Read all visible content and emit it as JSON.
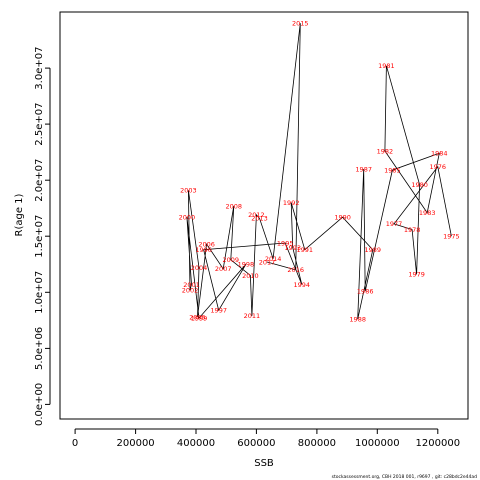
{
  "chart_data": {
    "type": "line",
    "xlabel": "SSB",
    "ylabel": "R(age 1)",
    "xlim": [
      -50000,
      1300000
    ],
    "ylim": [
      -1300000,
      35000000
    ],
    "x_ticks": [
      0,
      200000,
      400000,
      600000,
      800000,
      1000000,
      1200000
    ],
    "x_tick_labels": [
      "0",
      "200000",
      "400000",
      "600000",
      "800000",
      "1000000",
      "1200000"
    ],
    "y_ticks": [
      0,
      5000000,
      10000000,
      15000000,
      20000000,
      25000000,
      30000000
    ],
    "y_tick_labels": [
      "0.0e+00",
      "5.0e+06",
      "1.0e+07",
      "1.5e+07",
      "2.0e+07",
      "2.5e+07",
      "3.0e+07"
    ],
    "grid": false,
    "line_color": "#000000",
    "label_color": "#ff0000",
    "points": [
      {
        "label": "1975",
        "x": 1245000,
        "y": 15000000
      },
      {
        "label": "1976",
        "x": 1200000,
        "y": 21200000
      },
      {
        "label": "1977",
        "x": 1055000,
        "y": 16100000
      },
      {
        "label": "1978",
        "x": 1115000,
        "y": 15600000
      },
      {
        "label": "1979",
        "x": 1130000,
        "y": 11600000
      },
      {
        "label": "1980",
        "x": 1140000,
        "y": 19600000
      },
      {
        "label": "1981",
        "x": 1030000,
        "y": 30200000
      },
      {
        "label": "1982",
        "x": 1025000,
        "y": 22600000
      },
      {
        "label": "1983",
        "x": 1165000,
        "y": 17100000
      },
      {
        "label": "1984",
        "x": 1205000,
        "y": 22400000
      },
      {
        "label": "1985",
        "x": 1050000,
        "y": 20900000
      },
      {
        "label": "1986",
        "x": 960000,
        "y": 10100000
      },
      {
        "label": "1987",
        "x": 955000,
        "y": 21000000
      },
      {
        "label": "1988",
        "x": 935000,
        "y": 7600000
      },
      {
        "label": "1989",
        "x": 985000,
        "y": 13800000
      },
      {
        "label": "1990",
        "x": 885000,
        "y": 16700000
      },
      {
        "label": "1991",
        "x": 760000,
        "y": 13800000
      },
      {
        "label": "1992",
        "x": 715000,
        "y": 18000000
      },
      {
        "label": "1993",
        "x": 720000,
        "y": 14000000
      },
      {
        "label": "1994",
        "x": 750000,
        "y": 10700000
      },
      {
        "label": "1995",
        "x": 695000,
        "y": 14400000
      },
      {
        "label": "1996",
        "x": 425000,
        "y": 13800000
      },
      {
        "label": "1997",
        "x": 475000,
        "y": 8400000
      },
      {
        "label": "1998",
        "x": 565000,
        "y": 12500000
      },
      {
        "label": "1999",
        "x": 410000,
        "y": 7700000
      },
      {
        "label": "2000",
        "x": 370000,
        "y": 16700000
      },
      {
        "label": "2001",
        "x": 385000,
        "y": 10700000
      },
      {
        "label": "2002",
        "x": 380000,
        "y": 10200000
      },
      {
        "label": "2003",
        "x": 375000,
        "y": 19100000
      },
      {
        "label": "2004",
        "x": 410000,
        "y": 12200000
      },
      {
        "label": "2005",
        "x": 405000,
        "y": 7800000
      },
      {
        "label": "2006",
        "x": 435000,
        "y": 14300000
      },
      {
        "label": "2007",
        "x": 490000,
        "y": 12100000
      },
      {
        "label": "2008",
        "x": 525000,
        "y": 17700000
      },
      {
        "label": "2009",
        "x": 515000,
        "y": 12900000
      },
      {
        "label": "2010",
        "x": 580000,
        "y": 11500000
      },
      {
        "label": "2011",
        "x": 585000,
        "y": 7900000
      },
      {
        "label": "2012",
        "x": 600000,
        "y": 16900000
      },
      {
        "label": "2013",
        "x": 610000,
        "y": 16600000
      },
      {
        "label": "2014",
        "x": 655000,
        "y": 13000000
      },
      {
        "label": "2015",
        "x": 745000,
        "y": 34000000
      },
      {
        "label": "2016",
        "x": 730000,
        "y": 12000000
      },
      {
        "label": "2017",
        "x": 635000,
        "y": 12700000
      }
    ]
  },
  "footer": {
    "text": "stockassessment.org,  CBH  2018  001, r9697 ,  git: c28bdc2e44ad"
  }
}
